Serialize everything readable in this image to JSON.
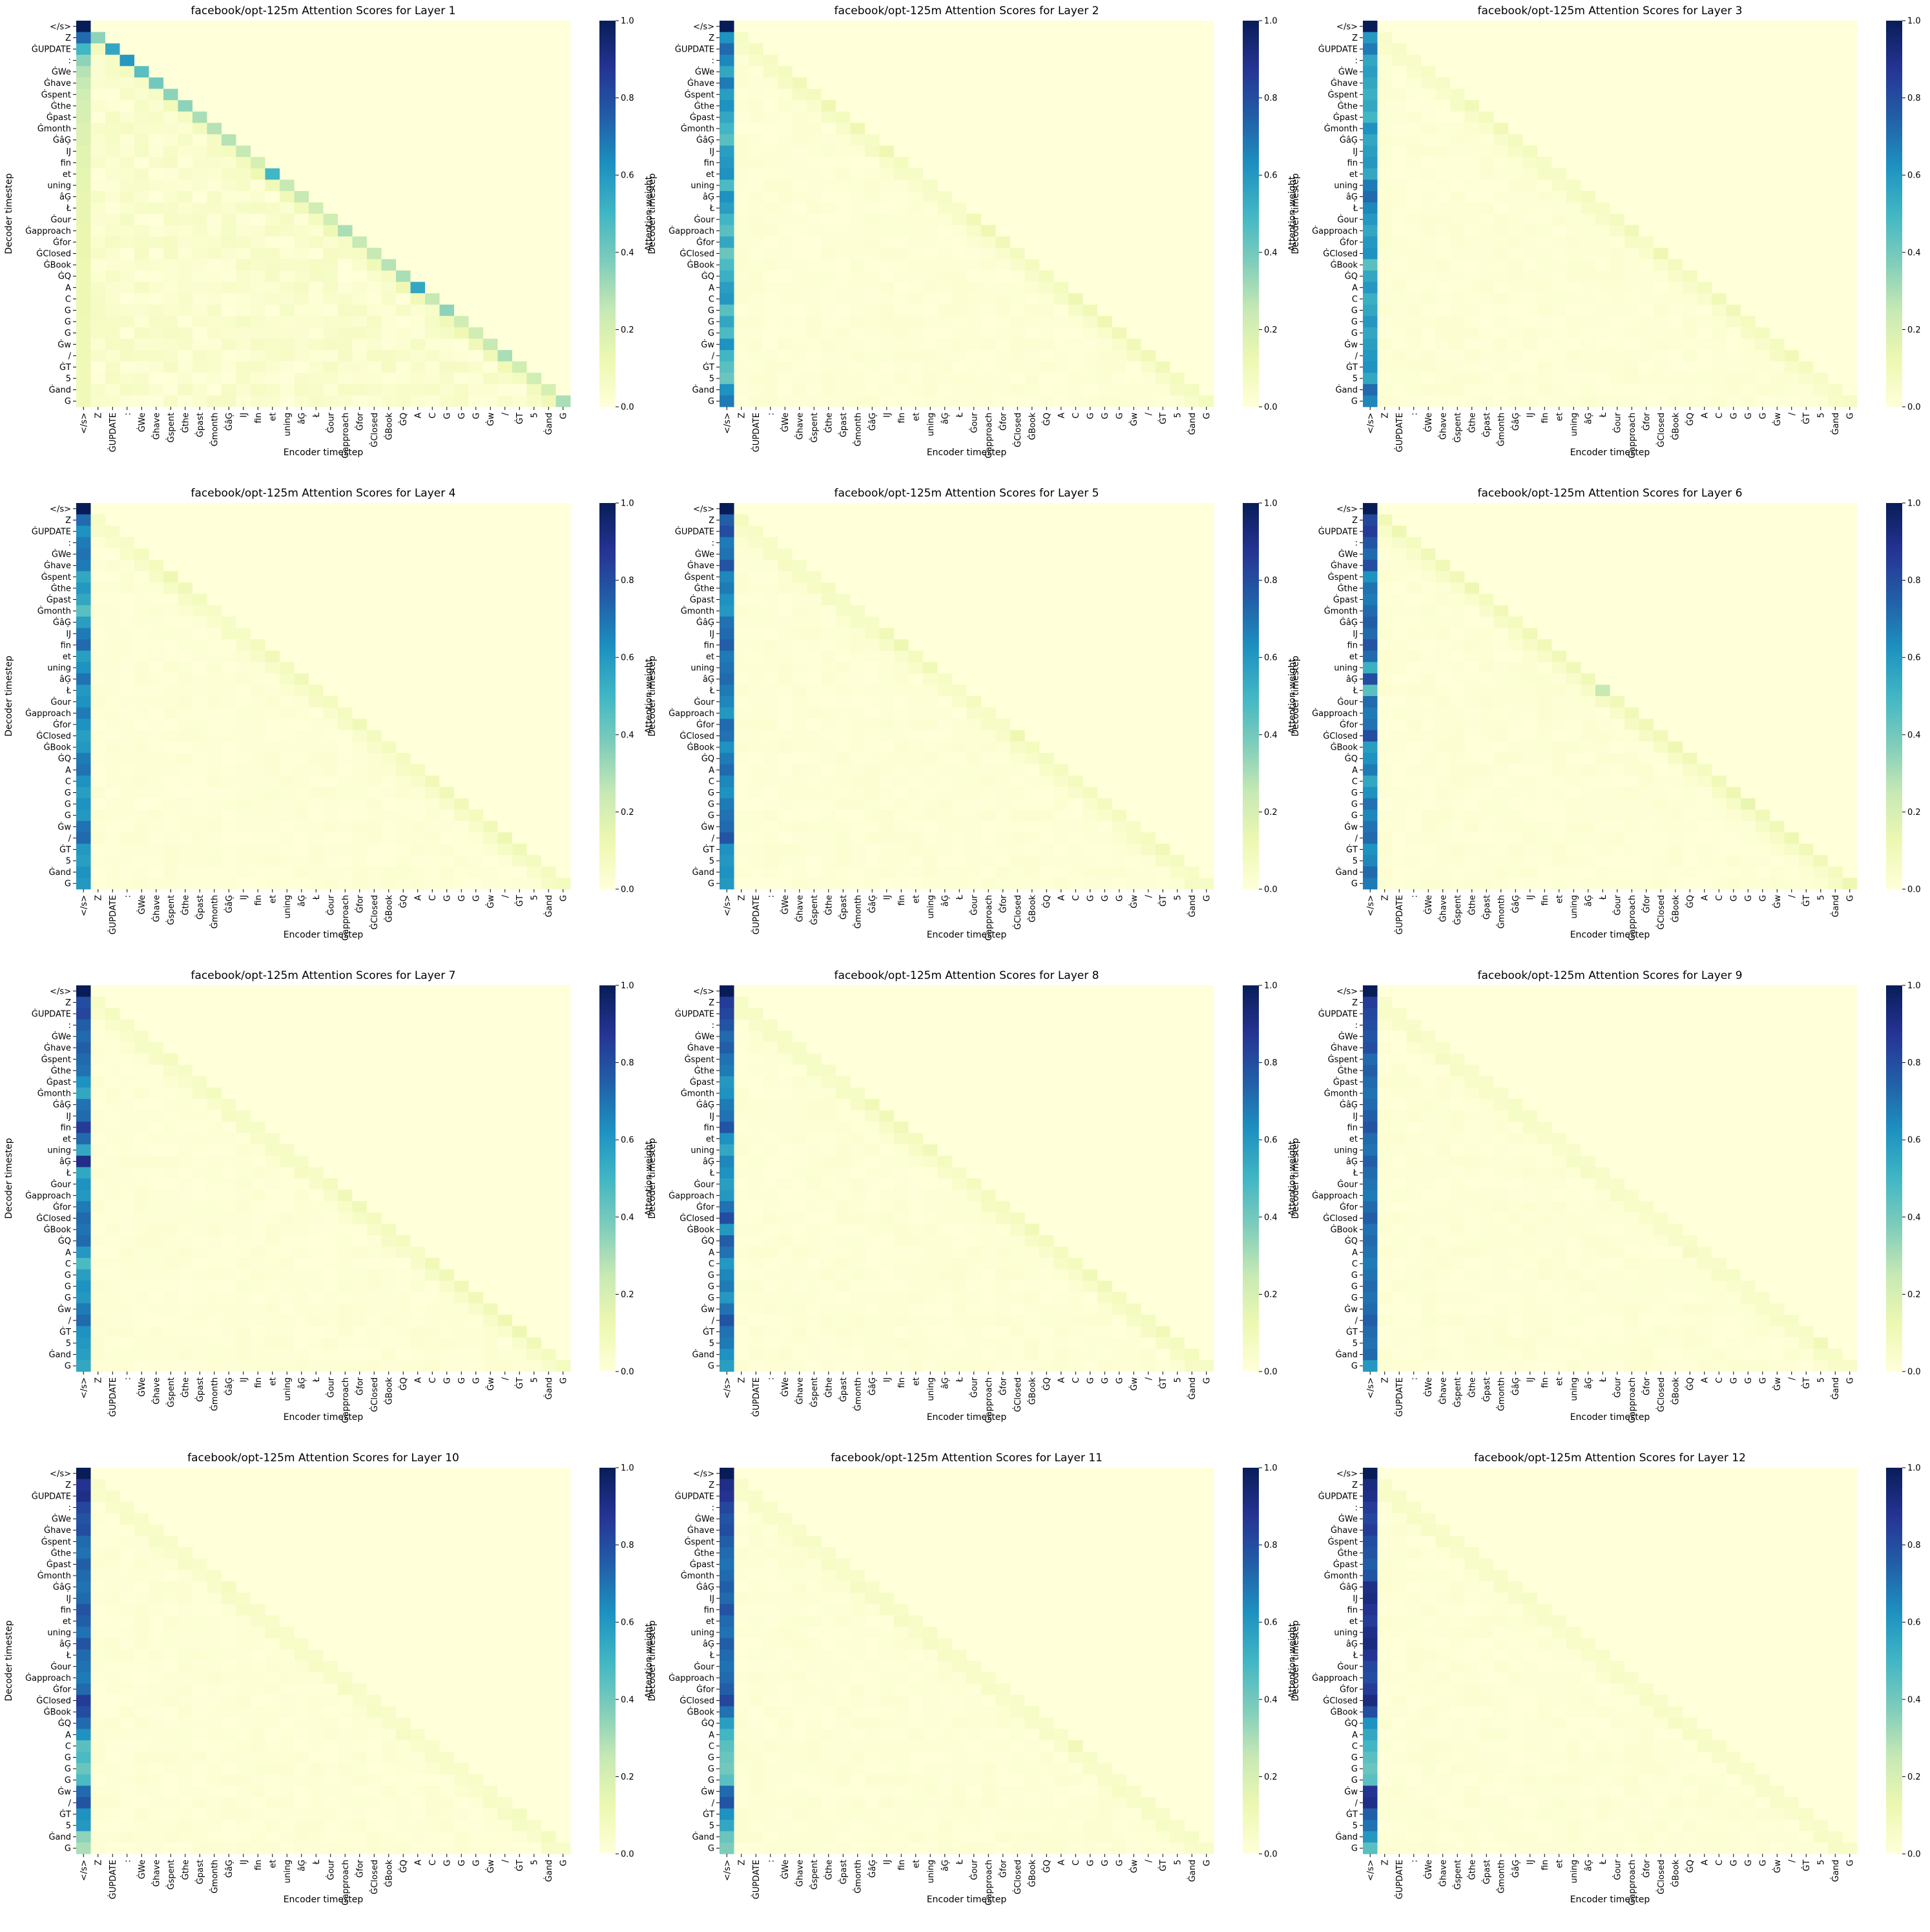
{
  "colors": {
    "colormap": [
      "#ffffd9",
      "#edf8b1",
      "#c7e9b4",
      "#7fcdbb",
      "#41b6c4",
      "#1d91c0",
      "#225ea8",
      "#253494",
      "#081d58"
    ]
  },
  "tokens": [
    "</s>",
    "Z",
    "ĠUPDATE",
    ":",
    "ĠWe",
    "Ġhave",
    "Ġspent",
    "Ġthe",
    "Ġpast",
    "Ġmonth",
    "ĠâĢ",
    "Ĳ",
    "fin",
    "et",
    "uning",
    "âĢ",
    "Ł",
    "Ġour",
    "Ġapproach",
    "Ġfor",
    "ĠClosed",
    "ĠBook",
    "ĠQ",
    "A",
    "C",
    "G",
    "G",
    "G",
    "Ġw",
    "/",
    "ĠT",
    "5",
    "Ġand",
    "G"
  ],
  "layers": [
    {
      "title": "facebook/opt-125m Attention Scores for Layer 1",
      "xlabel": "Encoder timestep",
      "ylabel": "Decoder timestep",
      "colorbar_label": "Attention weight"
    },
    {
      "title": "facebook/opt-125m Attention Scores for Layer 2",
      "xlabel": "Encoder timestep",
      "ylabel": "Decoder timestep",
      "colorbar_label": "Attention weight"
    },
    {
      "title": "facebook/opt-125m Attention Scores for Layer 3",
      "xlabel": "Encoder timestep",
      "ylabel": "Decoder timestep",
      "colorbar_label": "Attention weight"
    },
    {
      "title": "facebook/opt-125m Attention Scores for Layer 4",
      "xlabel": "Encoder timestep",
      "ylabel": "Decoder timestep",
      "colorbar_label": "Attention weight"
    },
    {
      "title": "facebook/opt-125m Attention Scores for Layer 5",
      "xlabel": "Encoder timestep",
      "ylabel": "Decoder timestep",
      "colorbar_label": "Attention weight"
    },
    {
      "title": "facebook/opt-125m Attention Scores for Layer 6",
      "xlabel": "Encoder timestep",
      "ylabel": "Decoder timestep",
      "colorbar_label": "Attention weight"
    },
    {
      "title": "facebook/opt-125m Attention Scores for Layer 7",
      "xlabel": "Encoder timestep",
      "ylabel": "Decoder timestep",
      "colorbar_label": "Attention weight"
    },
    {
      "title": "facebook/opt-125m Attention Scores for Layer 8",
      "xlabel": "Encoder timestep",
      "ylabel": "Decoder timestep",
      "colorbar_label": "Attention weight"
    },
    {
      "title": "facebook/opt-125m Attention Scores for Layer 9",
      "xlabel": "Encoder timestep",
      "ylabel": "Decoder timestep",
      "colorbar_label": "Attention weight"
    },
    {
      "title": "facebook/opt-125m Attention Scores for Layer 10",
      "xlabel": "Encoder timestep",
      "ylabel": "Decoder timestep",
      "colorbar_label": "Attention weight"
    },
    {
      "title": "facebook/opt-125m Attention Scores for Layer 11",
      "xlabel": "Encoder timestep",
      "ylabel": "Decoder timestep",
      "colorbar_label": "Attention weight"
    },
    {
      "title": "facebook/opt-125m Attention Scores for Layer 12",
      "xlabel": "Encoder timestep",
      "ylabel": "Decoder timestep",
      "colorbar_label": "Attention weight"
    }
  ],
  "chart_data": {
    "type": "heatmap",
    "colorbar": {
      "range": [
        0.0,
        1.0
      ],
      "ticks": [
        "0.0",
        "0.2",
        "0.4",
        "0.6",
        "0.8",
        "1.0"
      ]
    },
    "panels": [
      {
        "layer": 1,
        "first_column": [
          1.0,
          0.72,
          0.5,
          0.35,
          0.28,
          0.25,
          0.22,
          0.2,
          0.2,
          0.18,
          0.18,
          0.16,
          0.16,
          0.15,
          0.15,
          0.14,
          0.14,
          0.14,
          0.13,
          0.13,
          0.13,
          0.12,
          0.12,
          0.12,
          0.12,
          0.12,
          0.11,
          0.11,
          0.11,
          0.11,
          0.1,
          0.1,
          0.1,
          0.1
        ],
        "diagonal": [
          1.0,
          0.35,
          0.55,
          0.6,
          0.45,
          0.4,
          0.35,
          0.35,
          0.3,
          0.28,
          0.28,
          0.25,
          0.2,
          0.5,
          0.25,
          0.25,
          0.22,
          0.22,
          0.3,
          0.25,
          0.25,
          0.28,
          0.3,
          0.55,
          0.25,
          0.35,
          0.22,
          0.22,
          0.25,
          0.3,
          0.22,
          0.22,
          0.2,
          0.3
        ]
      },
      {
        "layer": 2,
        "first_column": [
          1.0,
          0.62,
          0.72,
          0.65,
          0.55,
          0.68,
          0.58,
          0.62,
          0.55,
          0.5,
          0.45,
          0.58,
          0.6,
          0.62,
          0.48,
          0.62,
          0.58,
          0.5,
          0.45,
          0.55,
          0.42,
          0.48,
          0.52,
          0.58,
          0.6,
          0.45,
          0.55,
          0.48,
          0.62,
          0.5,
          0.45,
          0.42,
          0.62,
          0.68
        ],
        "diagonal": [
          1.0,
          0.06,
          0.08,
          0.07,
          0.08,
          0.1,
          0.08,
          0.12,
          0.08,
          0.12,
          0.06,
          0.12,
          0.08,
          0.06,
          0.06,
          0.06,
          0.05,
          0.1,
          0.12,
          0.1,
          0.08,
          0.08,
          0.08,
          0.08,
          0.12,
          0.1,
          0.12,
          0.1,
          0.1,
          0.1,
          0.1,
          0.08,
          0.08,
          0.08
        ]
      },
      {
        "layer": 3,
        "first_column": [
          1.0,
          0.6,
          0.68,
          0.55,
          0.58,
          0.55,
          0.52,
          0.55,
          0.5,
          0.62,
          0.55,
          0.58,
          0.6,
          0.55,
          0.68,
          0.72,
          0.65,
          0.6,
          0.55,
          0.6,
          0.62,
          0.45,
          0.55,
          0.6,
          0.52,
          0.55,
          0.6,
          0.55,
          0.58,
          0.6,
          0.62,
          0.55,
          0.72,
          0.65
        ],
        "diagonal": [
          1.0,
          0.05,
          0.06,
          0.05,
          0.06,
          0.06,
          0.06,
          0.1,
          0.08,
          0.1,
          0.08,
          0.08,
          0.06,
          0.06,
          0.06,
          0.08,
          0.06,
          0.08,
          0.1,
          0.06,
          0.12,
          0.08,
          0.08,
          0.08,
          0.1,
          0.1,
          0.08,
          0.08,
          0.08,
          0.1,
          0.08,
          0.06,
          0.06,
          0.06
        ]
      },
      {
        "layer": 4,
        "first_column": [
          1.0,
          0.72,
          0.62,
          0.68,
          0.7,
          0.68,
          0.55,
          0.6,
          0.55,
          0.45,
          0.58,
          0.68,
          0.72,
          0.58,
          0.62,
          0.7,
          0.6,
          0.62,
          0.68,
          0.62,
          0.58,
          0.6,
          0.68,
          0.7,
          0.62,
          0.58,
          0.62,
          0.6,
          0.7,
          0.72,
          0.6,
          0.58,
          0.62,
          0.6
        ],
        "diagonal": [
          1.0,
          0.06,
          0.06,
          0.06,
          0.08,
          0.08,
          0.12,
          0.1,
          0.08,
          0.06,
          0.06,
          0.06,
          0.08,
          0.1,
          0.08,
          0.1,
          0.08,
          0.08,
          0.08,
          0.1,
          0.08,
          0.08,
          0.08,
          0.08,
          0.1,
          0.1,
          0.1,
          0.08,
          0.1,
          0.12,
          0.1,
          0.08,
          0.08,
          0.08
        ]
      },
      {
        "layer": 5,
        "first_column": [
          1.0,
          0.75,
          0.8,
          0.68,
          0.7,
          0.78,
          0.65,
          0.68,
          0.62,
          0.6,
          0.7,
          0.72,
          0.75,
          0.68,
          0.7,
          0.72,
          0.68,
          0.65,
          0.6,
          0.72,
          0.7,
          0.62,
          0.68,
          0.72,
          0.65,
          0.62,
          0.68,
          0.7,
          0.72,
          0.78,
          0.62,
          0.6,
          0.62,
          0.6
        ],
        "diagonal": [
          1.0,
          0.08,
          0.06,
          0.06,
          0.06,
          0.06,
          0.06,
          0.08,
          0.06,
          0.06,
          0.06,
          0.1,
          0.12,
          0.08,
          0.1,
          0.06,
          0.06,
          0.08,
          0.06,
          0.06,
          0.12,
          0.08,
          0.08,
          0.08,
          0.08,
          0.08,
          0.08,
          0.08,
          0.06,
          0.08,
          0.1,
          0.08,
          0.06,
          0.06
        ]
      },
      {
        "layer": 6,
        "first_column": [
          1.0,
          0.82,
          0.85,
          0.78,
          0.72,
          0.8,
          0.62,
          0.7,
          0.68,
          0.72,
          0.75,
          0.72,
          0.78,
          0.72,
          0.52,
          0.8,
          0.45,
          0.72,
          0.68,
          0.7,
          0.8,
          0.58,
          0.62,
          0.68,
          0.55,
          0.62,
          0.7,
          0.65,
          0.7,
          0.72,
          0.62,
          0.65,
          0.72,
          0.68
        ],
        "diagonal": [
          1.0,
          0.1,
          0.12,
          0.08,
          0.1,
          0.1,
          0.1,
          0.12,
          0.08,
          0.1,
          0.08,
          0.1,
          0.1,
          0.1,
          0.1,
          0.1,
          0.25,
          0.1,
          0.1,
          0.1,
          0.1,
          0.12,
          0.1,
          0.08,
          0.1,
          0.12,
          0.14,
          0.1,
          0.1,
          0.12,
          0.1,
          0.1,
          0.08,
          0.12
        ]
      },
      {
        "layer": 7,
        "first_column": [
          1.0,
          0.8,
          0.82,
          0.75,
          0.72,
          0.75,
          0.72,
          0.7,
          0.62,
          0.55,
          0.7,
          0.72,
          0.85,
          0.72,
          0.55,
          0.9,
          0.55,
          0.62,
          0.6,
          0.68,
          0.72,
          0.7,
          0.72,
          0.6,
          0.48,
          0.58,
          0.62,
          0.6,
          0.68,
          0.72,
          0.62,
          0.6,
          0.58,
          0.55
        ],
        "diagonal": [
          1.0,
          0.06,
          0.08,
          0.06,
          0.06,
          0.06,
          0.08,
          0.06,
          0.06,
          0.08,
          0.06,
          0.06,
          0.06,
          0.06,
          0.06,
          0.06,
          0.06,
          0.08,
          0.1,
          0.1,
          0.08,
          0.08,
          0.08,
          0.06,
          0.1,
          0.1,
          0.1,
          0.1,
          0.1,
          0.12,
          0.12,
          0.1,
          0.08,
          0.08
        ]
      },
      {
        "layer": 8,
        "first_column": [
          1.0,
          0.85,
          0.82,
          0.78,
          0.72,
          0.75,
          0.7,
          0.68,
          0.6,
          0.62,
          0.68,
          0.7,
          0.78,
          0.62,
          0.55,
          0.65,
          0.62,
          0.58,
          0.6,
          0.7,
          0.8,
          0.6,
          0.75,
          0.7,
          0.6,
          0.65,
          0.68,
          0.6,
          0.7,
          0.78,
          0.7,
          0.68,
          0.62,
          0.58
        ],
        "diagonal": [
          1.0,
          0.06,
          0.06,
          0.06,
          0.06,
          0.06,
          0.06,
          0.06,
          0.06,
          0.06,
          0.1,
          0.1,
          0.1,
          0.08,
          0.1,
          0.08,
          0.06,
          0.08,
          0.08,
          0.08,
          0.08,
          0.1,
          0.08,
          0.08,
          0.08,
          0.1,
          0.1,
          0.08,
          0.08,
          0.08,
          0.1,
          0.08,
          0.08,
          0.06
        ]
      },
      {
        "layer": 9,
        "first_column": [
          1.0,
          0.85,
          0.82,
          0.8,
          0.78,
          0.8,
          0.72,
          0.75,
          0.72,
          0.7,
          0.72,
          0.75,
          0.78,
          0.72,
          0.7,
          0.75,
          0.72,
          0.7,
          0.68,
          0.72,
          0.75,
          0.7,
          0.72,
          0.7,
          0.68,
          0.7,
          0.72,
          0.7,
          0.72,
          0.75,
          0.72,
          0.7,
          0.72,
          0.6
        ],
        "diagonal": [
          1.0,
          0.05,
          0.05,
          0.05,
          0.05,
          0.05,
          0.05,
          0.05,
          0.05,
          0.05,
          0.06,
          0.06,
          0.05,
          0.05,
          0.05,
          0.05,
          0.05,
          0.05,
          0.05,
          0.05,
          0.05,
          0.05,
          0.05,
          0.05,
          0.05,
          0.06,
          0.05,
          0.05,
          0.05,
          0.06,
          0.06,
          0.1,
          0.06,
          0.05
        ]
      },
      {
        "layer": 10,
        "first_column": [
          1.0,
          0.88,
          0.9,
          0.82,
          0.78,
          0.8,
          0.72,
          0.7,
          0.75,
          0.72,
          0.7,
          0.72,
          0.78,
          0.75,
          0.7,
          0.78,
          0.72,
          0.7,
          0.68,
          0.72,
          0.85,
          0.8,
          0.72,
          0.62,
          0.45,
          0.48,
          0.42,
          0.48,
          0.72,
          0.78,
          0.62,
          0.6,
          0.35,
          0.3
        ],
        "diagonal": [
          1.0,
          0.05,
          0.05,
          0.05,
          0.05,
          0.05,
          0.05,
          0.05,
          0.05,
          0.05,
          0.08,
          0.05,
          0.05,
          0.05,
          0.05,
          0.05,
          0.05,
          0.05,
          0.05,
          0.05,
          0.05,
          0.05,
          0.05,
          0.05,
          0.05,
          0.05,
          0.05,
          0.05,
          0.05,
          0.05,
          0.08,
          0.05,
          0.08,
          0.05
        ]
      },
      {
        "layer": 11,
        "first_column": [
          1.0,
          0.9,
          0.88,
          0.82,
          0.78,
          0.8,
          0.75,
          0.72,
          0.7,
          0.72,
          0.75,
          0.72,
          0.78,
          0.72,
          0.7,
          0.75,
          0.72,
          0.7,
          0.72,
          0.75,
          0.82,
          0.7,
          0.58,
          0.5,
          0.45,
          0.42,
          0.4,
          0.45,
          0.72,
          0.78,
          0.62,
          0.55,
          0.42,
          0.38
        ],
        "diagonal": [
          1.0,
          0.05,
          0.05,
          0.05,
          0.05,
          0.05,
          0.06,
          0.05,
          0.05,
          0.05,
          0.05,
          0.06,
          0.05,
          0.05,
          0.06,
          0.05,
          0.05,
          0.05,
          0.05,
          0.05,
          0.05,
          0.06,
          0.05,
          0.05,
          0.1,
          0.06,
          0.05,
          0.05,
          0.05,
          0.06,
          0.05,
          0.05,
          0.06,
          0.05
        ]
      },
      {
        "layer": 12,
        "first_column": [
          1.0,
          0.92,
          0.9,
          0.85,
          0.82,
          0.85,
          0.8,
          0.78,
          0.75,
          0.78,
          0.9,
          0.92,
          0.88,
          0.85,
          0.9,
          0.92,
          0.88,
          0.82,
          0.8,
          0.85,
          0.92,
          0.8,
          0.62,
          0.55,
          0.5,
          0.45,
          0.42,
          0.45,
          0.88,
          0.9,
          0.75,
          0.7,
          0.6,
          0.45
        ],
        "diagonal": [
          1.0,
          0.05,
          0.06,
          0.05,
          0.05,
          0.05,
          0.05,
          0.05,
          0.05,
          0.05,
          0.05,
          0.06,
          0.05,
          0.05,
          0.05,
          0.05,
          0.05,
          0.05,
          0.05,
          0.05,
          0.05,
          0.05,
          0.05,
          0.05,
          0.06,
          0.05,
          0.05,
          0.05,
          0.05,
          0.05,
          0.05,
          0.05,
          0.05,
          0.05
        ]
      }
    ]
  }
}
